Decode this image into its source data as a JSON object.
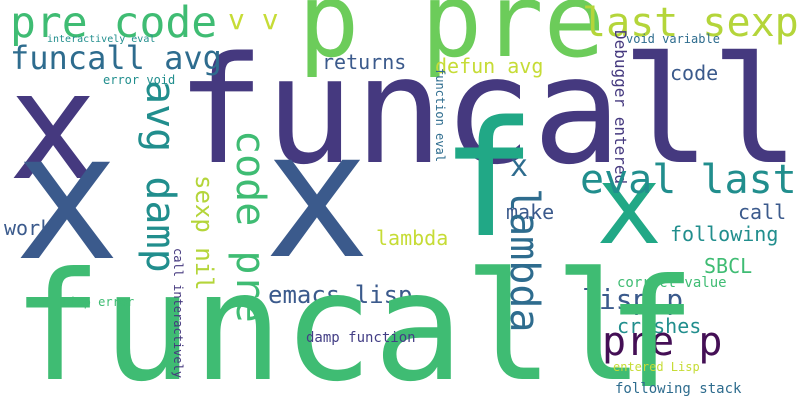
{
  "palette": {
    "indigo": "#45397f",
    "slate": "#3b5a8c",
    "blue_teal": "#2e6c8e",
    "teal": "#218e8d",
    "sea_green": "#21a886",
    "green": "#3fbc73",
    "light_green": "#6ccc5a",
    "lime": "#b4d53a",
    "yellow_green": "#c6dc36",
    "dark_purple": "#440f55",
    "violet": "#433e85"
  },
  "words": [
    {
      "text": "funcall",
      "color": "indigo"
    },
    {
      "text": "x",
      "color": "indigo"
    },
    {
      "text": "p pre",
      "color": "light_green"
    },
    {
      "text": "pre code",
      "color": "green"
    },
    {
      "text": "v v",
      "color": "yellow_green"
    },
    {
      "text": "last sexp",
      "color": "lime"
    },
    {
      "text": "funcall avg",
      "color": "blue_teal"
    },
    {
      "text": "interactively eval",
      "color": "teal"
    },
    {
      "text": "error void",
      "color": "teal"
    },
    {
      "text": "returns",
      "color": "slate"
    },
    {
      "text": "defun avg",
      "color": "yellow_green"
    },
    {
      "text": "void variable",
      "color": "blue_teal"
    },
    {
      "text": "code",
      "color": "slate"
    },
    {
      "text": "Debugger entered",
      "color": "indigo"
    },
    {
      "text": "function eval",
      "color": "blue_teal"
    },
    {
      "text": "x",
      "color": "slate"
    },
    {
      "text": "x",
      "color": "slate"
    },
    {
      "text": "f",
      "color": "sea_green"
    },
    {
      "text": "x",
      "color": "sea_green"
    },
    {
      "text": "avg damp",
      "color": "teal"
    },
    {
      "text": "code pre",
      "color": "green"
    },
    {
      "text": "sexp nil",
      "color": "lime"
    },
    {
      "text": "eval last",
      "color": "teal"
    },
    {
      "text": "x",
      "color": "blue_teal"
    },
    {
      "text": "make",
      "color": "slate"
    },
    {
      "text": "call",
      "color": "slate"
    },
    {
      "text": "following",
      "color": "teal"
    },
    {
      "text": "work",
      "color": "slate"
    },
    {
      "text": "lambda",
      "color": "yellow_green"
    },
    {
      "text": "lambda",
      "color": "blue_teal"
    },
    {
      "text": "SBCL",
      "color": "green"
    },
    {
      "text": "emacs lisp",
      "color": "slate"
    },
    {
      "text": "lisp p",
      "color": "slate"
    },
    {
      "text": "correct value",
      "color": "green"
    },
    {
      "text": "pre p",
      "color": "dark_purple"
    },
    {
      "text": "crashes",
      "color": "teal"
    },
    {
      "text": "funcall",
      "color": "green"
    },
    {
      "text": "f",
      "color": "green"
    },
    {
      "text": "Lisp error",
      "color": "green"
    },
    {
      "text": "call interactively",
      "color": "indigo"
    },
    {
      "text": "damp function",
      "color": "violet"
    },
    {
      "text": "entered Lisp",
      "color": "yellow_green"
    },
    {
      "text": "following stack",
      "color": "blue_teal"
    }
  ]
}
